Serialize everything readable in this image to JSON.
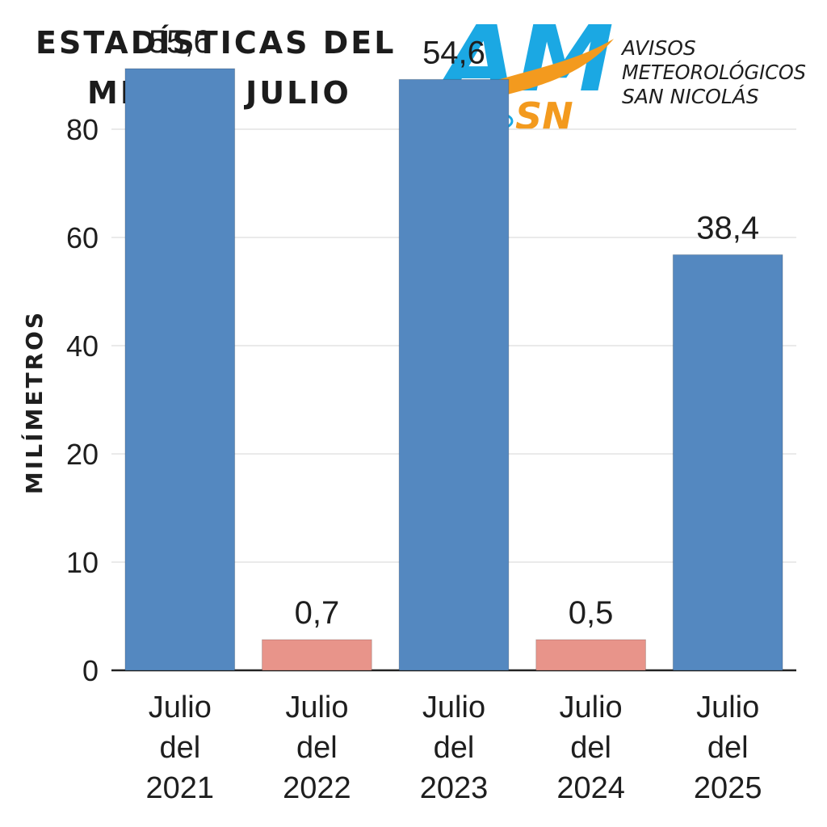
{
  "title": {
    "line1": "ESTADÍSTICAS DEL",
    "line2": "MES DE JULIO"
  },
  "logo": {
    "mark_top": "AM",
    "mark_bottom": "SN",
    "text_line1": "AVISOS",
    "text_line2": "METEOROLÓGICOS",
    "text_line3": "SAN NICOLÁS",
    "colors": {
      "blue": "#1ba8e3",
      "orange": "#f39a1e"
    }
  },
  "chart_data": {
    "type": "bar",
    "ylabel": "MILÍMETROS",
    "xlabel": "",
    "y_tick_labels": [
      "0",
      "10",
      "20",
      "40",
      "60",
      "80"
    ],
    "grid": true,
    "categories": [
      [
        "Julio",
        "del",
        "2021"
      ],
      [
        "Julio",
        "del",
        "2022"
      ],
      [
        "Julio",
        "del",
        "2023"
      ],
      [
        "Julio",
        "del",
        "2024"
      ],
      [
        "Julio",
        "del",
        "2025"
      ]
    ],
    "values": [
      55.6,
      0.7,
      54.6,
      0.5,
      38.4
    ],
    "value_labels": [
      "55,6",
      "0,7",
      "54,6",
      "0,5",
      "38,4"
    ],
    "bar_colors": [
      "#5488c0",
      "#e8948a",
      "#5488c0",
      "#e8948a",
      "#5488c0"
    ],
    "colors": {
      "high": "#5488c0",
      "low": "#e8948a",
      "grid": "#e4e4e4",
      "axis": "#222222"
    }
  }
}
